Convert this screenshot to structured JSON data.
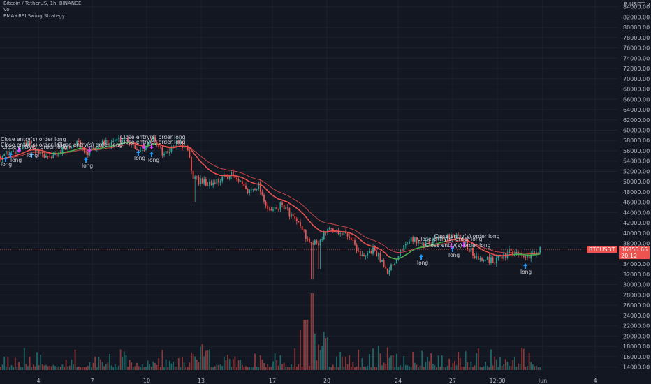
{
  "legend": {
    "symbol_line": "Bitcoin / TetherUS, 1h, BINANCE",
    "vol": "Vol",
    "strategy": "EMA+RSI Swing Strategy"
  },
  "currency": "USDT",
  "currency_prefix": "B",
  "colors": {
    "background": "#131722",
    "up": "#26a69a",
    "down": "#ef5350",
    "ema": "#ef5350",
    "ema_up": "#4caf50",
    "price_tag": "#ef5350",
    "long_arrow": "#2196f3",
    "close_arrow": "#e040fb"
  },
  "chart_data": {
    "type": "candlestick",
    "symbol": "BTCUSDT",
    "y_ticks": [
      "84000.00",
      "82000.00",
      "80000.00",
      "78000.00",
      "76000.00",
      "74000.00",
      "72000.00",
      "70000.00",
      "68000.00",
      "66000.00",
      "64000.00",
      "62000.00",
      "60000.00",
      "58000.00",
      "56000.00",
      "54000.00",
      "52000.00",
      "50000.00",
      "48000.00",
      "46000.00",
      "44000.00",
      "42000.00",
      "40000.00",
      "38000.00",
      "34000.00",
      "32000.00",
      "30000.00",
      "28000.00",
      "26000.00",
      "24000.00",
      "22000.00",
      "20000.00",
      "18000.00",
      "16000.00",
      "14000.00"
    ],
    "x_ticks": [
      "4",
      "7",
      "10",
      "13",
      "17",
      "20",
      "24",
      "27",
      "12:00",
      "Jun",
      "4"
    ],
    "last_price_label": "BTCUSDT",
    "last_price": "36855.65",
    "countdown": "20:12",
    "ylim": [
      13400,
      85300
    ],
    "price_path": [
      {
        "x": 0,
        "p": 55000
      },
      {
        "x": 20,
        "p": 56000
      },
      {
        "x": 40,
        "p": 57200
      },
      {
        "x": 60,
        "p": 55000
      },
      {
        "x": 75,
        "p": 54800
      },
      {
        "x": 95,
        "p": 56500
      },
      {
        "x": 110,
        "p": 57500
      },
      {
        "x": 125,
        "p": 55500
      },
      {
        "x": 150,
        "p": 57500
      },
      {
        "x": 180,
        "p": 58500
      },
      {
        "x": 200,
        "p": 56000
      },
      {
        "x": 220,
        "p": 58500
      },
      {
        "x": 235,
        "p": 55000
      },
      {
        "x": 255,
        "p": 57800
      },
      {
        "x": 268,
        "p": 56000
      },
      {
        "x": 278,
        "p": 50500
      },
      {
        "x": 300,
        "p": 49500
      },
      {
        "x": 330,
        "p": 51500
      },
      {
        "x": 355,
        "p": 48000
      },
      {
        "x": 370,
        "p": 49500
      },
      {
        "x": 385,
        "p": 44000
      },
      {
        "x": 405,
        "p": 45500
      },
      {
        "x": 425,
        "p": 42000
      },
      {
        "x": 440,
        "p": 39000
      },
      {
        "x": 455,
        "p": 38000
      },
      {
        "x": 470,
        "p": 41000
      },
      {
        "x": 500,
        "p": 39500
      },
      {
        "x": 520,
        "p": 35000
      },
      {
        "x": 535,
        "p": 37000
      },
      {
        "x": 555,
        "p": 32500
      },
      {
        "x": 575,
        "p": 37000
      },
      {
        "x": 590,
        "p": 39000
      },
      {
        "x": 610,
        "p": 38000
      },
      {
        "x": 630,
        "p": 39500
      },
      {
        "x": 660,
        "p": 39000
      },
      {
        "x": 680,
        "p": 35500
      },
      {
        "x": 710,
        "p": 34500
      },
      {
        "x": 730,
        "p": 36500
      },
      {
        "x": 755,
        "p": 35500
      },
      {
        "x": 775,
        "p": 37000
      }
    ],
    "annotations": [
      {
        "text": "Close entry(s) order long",
        "x": 1,
        "y": 202
      },
      {
        "text": "Close entry(s) order long",
        "x": 1,
        "y": 210
      },
      {
        "text": "Close entry(s) order long",
        "x": 3,
        "y": 213
      },
      {
        "text": "Close entry(s) order long",
        "x": 82,
        "y": 210
      },
      {
        "text": "Close entry(s) order long",
        "x": 172,
        "y": 199
      },
      {
        "text": "Close entry(s) order long",
        "x": 172,
        "y": 206
      },
      {
        "text": "Close entry(s) order long",
        "x": 622,
        "y": 341
      },
      {
        "text": "Close entry(s) order long",
        "x": 597,
        "y": 345
      },
      {
        "text": "Close entry(s) order long",
        "x": 609,
        "y": 354
      }
    ],
    "long_signals": [
      {
        "x": 8,
        "y": 228,
        "label": "long",
        "lx": 1,
        "ly": 238
      },
      {
        "x": 15,
        "y": 222,
        "label": "long",
        "lx": 15,
        "ly": 232
      },
      {
        "x": 45,
        "y": 222,
        "label": "long",
        "lx": 38,
        "ly": 225
      },
      {
        "x": 123,
        "y": 229,
        "label": "long",
        "lx": 117,
        "ly": 240
      },
      {
        "x": 198,
        "y": 219,
        "label": "long",
        "lx": 192,
        "ly": 229
      },
      {
        "x": 217,
        "y": 221,
        "label": "long",
        "lx": 212,
        "ly": 232
      },
      {
        "x": 603,
        "y": 368,
        "label": "long",
        "lx": 597,
        "ly": 379
      },
      {
        "x": 648,
        "y": 357,
        "label": "long",
        "lx": 642,
        "ly": 368
      },
      {
        "x": 752,
        "y": 381,
        "label": "long",
        "lx": 745,
        "ly": 392
      }
    ],
    "close_signals": [
      {
        "x": 27,
        "y": 214
      },
      {
        "x": 128,
        "y": 214
      },
      {
        "x": 206,
        "y": 209
      },
      {
        "x": 217,
        "y": 209
      },
      {
        "x": 646,
        "y": 351
      },
      {
        "x": 664,
        "y": 350
      }
    ]
  }
}
